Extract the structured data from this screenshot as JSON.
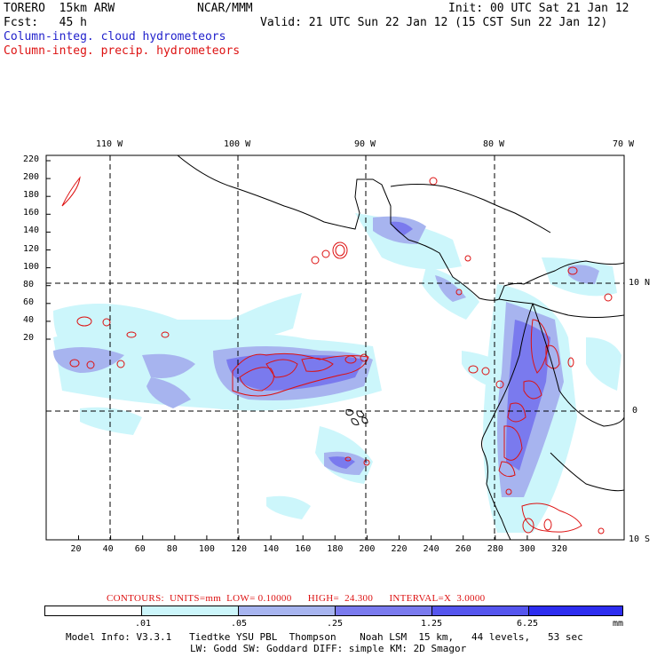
{
  "header": {
    "model": "TORERO  15km ARW",
    "center": "NCAR/MMM",
    "init": "Init: 00 UTC Sat 21 Jan 12",
    "fcst": "Fcst:   45 h",
    "valid": "Valid: 21 UTC Sun 22 Jan 12 (15 CST Sun 22 Jan 12)",
    "field_cloud": "Column-integ. cloud hydrometeors",
    "field_precip": "Column-integ. precip. hydrometeors"
  },
  "colors": {
    "cloud_text": "#2222cc",
    "precip_text": "#dd1111",
    "legend": [
      "#ffffff",
      "#ccf6fb",
      "#a7b4ef",
      "#7a7aee",
      "#5555ee",
      "#2d2def"
    ]
  },
  "map": {
    "lon_labels": [
      "110 W",
      "100 W",
      "90 W",
      "80 W",
      "70 W"
    ],
    "lat_labels": [
      "10 N",
      "0",
      "10 S"
    ],
    "y_ticks": [
      "220",
      "200",
      "180",
      "160",
      "140",
      "120",
      "100",
      "80",
      "60",
      "40",
      "20"
    ],
    "x_ticks": [
      "20",
      "40",
      "60",
      "80",
      "100",
      "120",
      "140",
      "160",
      "180",
      "200",
      "220",
      "240",
      "260",
      "280",
      "300",
      "320"
    ]
  },
  "contours_line": "CONTOURS:  UNITS=mm  LOW= 0.10000      HIGH=  24.300      INTERVAL=X  3.0000",
  "legend": {
    "labels": [
      ".01",
      ".05",
      ".25",
      "1.25",
      "6.25"
    ],
    "unit": "mm"
  },
  "footer": {
    "line1": "Model Info: V3.3.1   Tiedtke YSU PBL  Thompson    Noah LSM  15 km,   44 levels,   53 sec",
    "line2": "LW: Godd SW: Goddard DIFF: simple KM: 2D Smagor"
  }
}
